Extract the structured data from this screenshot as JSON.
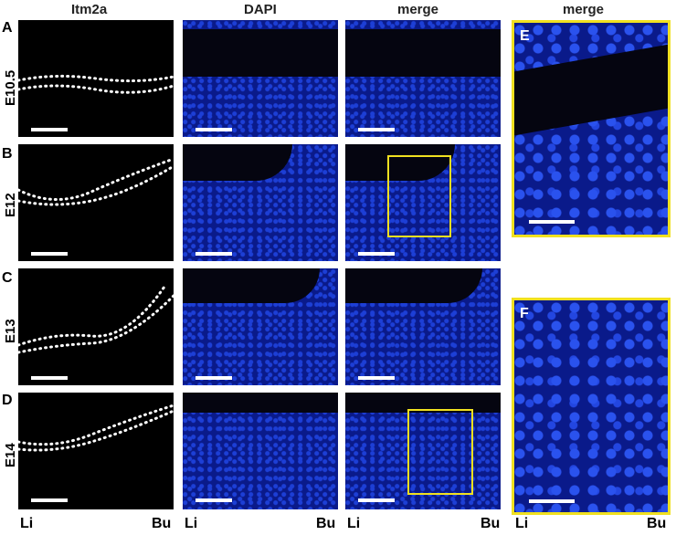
{
  "columns": [
    "Itm2a",
    "DAPI",
    "merge",
    "merge"
  ],
  "rows": [
    {
      "letter": "A",
      "age": "E10.5"
    },
    {
      "letter": "B",
      "age": "E12"
    },
    {
      "letter": "C",
      "age": "E13"
    },
    {
      "letter": "D",
      "age": "E14"
    }
  ],
  "side_panels": [
    "E",
    "F"
  ],
  "axis": {
    "left": "Li",
    "right": "Bu"
  },
  "colors": {
    "dapi_blue": "#0a1a8a",
    "box_yellow": "#f0e020",
    "background": "#000000"
  }
}
